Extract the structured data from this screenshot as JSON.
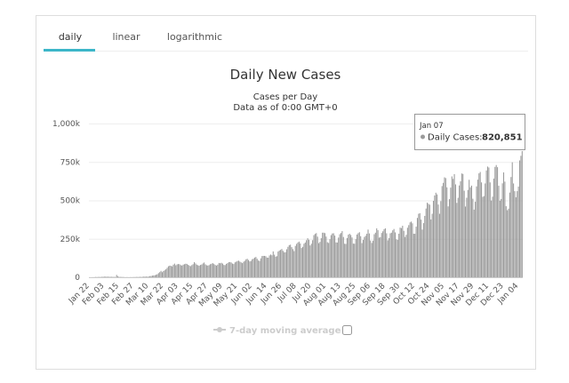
{
  "tabs": [
    "daily",
    "linear",
    "logarithmic"
  ],
  "chart_data": {
    "type": "bar",
    "title": "Daily New Cases",
    "subtitle": [
      "Cases per Day",
      "Data as of 0:00 GMT+0"
    ],
    "categories": [
      "Jan 22",
      null,
      null,
      null,
      null,
      null,
      null,
      null,
      null,
      null,
      null,
      null,
      "Feb 03",
      null,
      null,
      null,
      null,
      null,
      null,
      null,
      null,
      null,
      null,
      null,
      "Feb 15",
      null,
      null,
      null,
      null,
      null,
      null,
      null,
      null,
      null,
      null,
      null,
      "Feb 27",
      null,
      null,
      null,
      null,
      null,
      null,
      null,
      null,
      null,
      null,
      null,
      "Mar 10",
      null,
      null,
      null,
      null,
      null,
      null,
      null,
      null,
      null,
      null,
      null,
      "Mar 22",
      null,
      null,
      null,
      null,
      null,
      null,
      null,
      null,
      null,
      null,
      null,
      "Apr 03",
      null,
      null,
      null,
      null,
      null,
      null,
      null,
      null,
      null,
      null,
      null,
      "Apr 15",
      null,
      null,
      null,
      null,
      null,
      null,
      null,
      null,
      null,
      null,
      null,
      "Apr 27",
      null,
      null,
      null,
      null,
      null,
      null,
      null,
      null,
      null,
      null,
      null,
      "May 09",
      null,
      null,
      null,
      null,
      null,
      null,
      null,
      null,
      null,
      null,
      null,
      "May 21",
      null,
      null,
      null,
      null,
      null,
      null,
      null,
      null,
      null,
      null,
      null,
      "Jun 02",
      null,
      null,
      null,
      null,
      null,
      null,
      null,
      null,
      null,
      null,
      null,
      "Jun 14",
      null,
      null,
      null,
      null,
      null,
      null,
      null,
      null,
      null,
      null,
      null,
      "Jun 26",
      null,
      null,
      null,
      null,
      null,
      null,
      null,
      null,
      null,
      null,
      null,
      "Jul 08",
      null,
      null,
      null,
      null,
      null,
      null,
      null,
      null,
      null,
      null,
      null,
      "Jul 20",
      null,
      null,
      null,
      null,
      null,
      null,
      null,
      null,
      null,
      null,
      null,
      "Aug 01",
      null,
      null,
      null,
      null,
      null,
      null,
      null,
      null,
      null,
      null,
      null,
      "Aug 13",
      null,
      null,
      null,
      null,
      null,
      null,
      null,
      null,
      null,
      null,
      null,
      "Aug 25",
      null,
      null,
      null,
      null,
      null,
      null,
      null,
      null,
      null,
      null,
      null,
      "Sep 06",
      null,
      null,
      null,
      null,
      null,
      null,
      null,
      null,
      null,
      null,
      null,
      "Sep 18",
      null,
      null,
      null,
      null,
      null,
      null,
      null,
      null,
      null,
      null,
      null,
      "Sep 30",
      null,
      null,
      null,
      null,
      null,
      null,
      null,
      null,
      null,
      null,
      null,
      "Oct 12",
      null,
      null,
      null,
      null,
      null,
      null,
      null,
      null,
      null,
      null,
      null,
      "Oct 24",
      null,
      null,
      null,
      null,
      null,
      null,
      null,
      null,
      null,
      null,
      null,
      "Nov 05",
      null,
      null,
      null,
      null,
      null,
      null,
      null,
      null,
      null,
      null,
      null,
      "Nov 17",
      null,
      null,
      null,
      null,
      null,
      null,
      null,
      null,
      null,
      null,
      null,
      "Nov 29",
      null,
      null,
      null,
      null,
      null,
      null,
      null,
      null,
      null,
      null,
      null,
      "Dec 11",
      null,
      null,
      null,
      null,
      null,
      null,
      null,
      null,
      null,
      null,
      null,
      "Dec 23",
      null,
      null,
      null,
      null,
      null,
      null,
      null,
      null,
      null,
      null,
      null,
      "Jan 04",
      null,
      null,
      null
    ],
    "series": [
      {
        "name": "Daily Cases",
        "color": "#9a9a9a",
        "values": [
          600,
          100,
          300,
          700,
          800,
          1800,
          1500,
          1800,
          2100,
          2000,
          2600,
          3200,
          3900,
          3700,
          3700,
          3200,
          3400,
          2700,
          3000,
          2500,
          2100,
          2000,
          15100,
          6400,
          2700,
          2100,
          2000,
          1900,
          1100,
          600,
          1000,
          800,
          600,
          900,
          900,
          1100,
          1200,
          1600,
          2000,
          1900,
          2100,
          2500,
          2300,
          2800,
          4000,
          4000,
          4100,
          3900,
          4500,
          7400,
          8100,
          10800,
          11500,
          13000,
          16400,
          19500,
          27000,
          33500,
          41700,
          33100,
          40900,
          45500,
          52100,
          61300,
          71600,
          75300,
          74400,
          71000,
          81800,
          88800,
          78000,
          84000,
          86000,
          85000,
          79000,
          76000,
          82000,
          85000,
          88000,
          87000,
          81000,
          76000,
          72000,
          79000,
          85000,
          98000,
          90000,
          82000,
          78000,
          75000,
          80000,
          83000,
          90000,
          96000,
          84000,
          78000,
          76000,
          79000,
          85000,
          88000,
          92000,
          86000,
          80000,
          76000,
          82000,
          93000,
          91000,
          94000,
          89000,
          80000,
          79000,
          87000,
          92000,
          98000,
          99000,
          96000,
          89000,
          86000,
          97000,
          101000,
          106000,
          108000,
          102000,
          97000,
          92000,
          101000,
          107000,
          117000,
          120000,
          112000,
          103000,
          106000,
          117000,
          121000,
          128000,
          132000,
          120000,
          109000,
          106000,
          123000,
          138000,
          139000,
          139000,
          137000,
          128000,
          127000,
          142000,
          148000,
          143000,
          168000,
          147000,
          134000,
          137000,
          167000,
          174000,
          178000,
          184000,
          172000,
          162000,
          163000,
          182000,
          198000,
          209000,
          212000,
          196000,
          183000,
          170000,
          204000,
          217000,
          226000,
          232000,
          220000,
          190000,
          198000,
          218000,
          226000,
          241000,
          254000,
          244000,
          207000,
          218000,
          241000,
          274000,
          282000,
          287000,
          264000,
          222000,
          230000,
          254000,
          290000,
          290000,
          287000,
          265000,
          228000,
          223000,
          248000,
          274000,
          285000,
          286000,
          271000,
          227000,
          226000,
          258000,
          280000,
          288000,
          300000,
          262000,
          218000,
          217000,
          255000,
          277000,
          283000,
          275000,
          259000,
          219000,
          218000,
          248000,
          278000,
          287000,
          293000,
          267000,
          222000,
          243000,
          262000,
          270000,
          283000,
          310000,
          285000,
          239000,
          223000,
          238000,
          280000,
          290000,
          318000,
          306000,
          258000,
          261000,
          288000,
          299000,
          313000,
          318000,
          286000,
          240000,
          255000,
          286000,
          290000,
          305000,
          314000,
          292000,
          247000,
          243000,
          283000,
          323000,
          320000,
          335000,
          302000,
          262000,
          276000,
          322000,
          339000,
          357000,
          362000,
          351000,
          283000,
          283000,
          329000,
          386000,
          413000,
          417000,
          375000,
          310000,
          352000,
          399000,
          447000,
          485000,
          478000,
          472000,
          376000,
          413000,
          497000,
          532000,
          550000,
          539000,
          473000,
          413000,
          495000,
          593000,
          614000,
          650000,
          645000,
          585000,
          461000,
          508000,
          583000,
          656000,
          640000,
          671000,
          604000,
          484000,
          517000,
          597000,
          624000,
          675000,
          672000,
          563000,
          460000,
          517000,
          568000,
          634000,
          585000,
          596000,
          511000,
          440000,
          491000,
          591000,
          635000,
          676000,
          685000,
          617000,
          523000,
          528000,
          610000,
          695000,
          720000,
          714000,
          617000,
          499000,
          524000,
          642000,
          718000,
          730000,
          716000,
          595000,
          498000,
          509000,
          611000,
          682000,
          622000,
          462000,
          436000,
          446000,
          551000,
          652000,
          748000,
          610000,
          560000,
          520000,
          560000,
          590000,
          760000,
          790000,
          820851
        ]
      }
    ],
    "ylim": [
      0,
      1000000
    ],
    "yticks": [
      0,
      {
        "value": 250000,
        "label": "250k"
      },
      {
        "value": 500000,
        "label": "500k"
      },
      {
        "value": 750000,
        "label": "750k"
      },
      {
        "value": 1000000,
        "label": "1,000k"
      }
    ],
    "grid": true,
    "legend_items": [
      {
        "name": "7-day moving average",
        "hidden": true
      }
    ],
    "tooltip": {
      "title": "Jan 07",
      "label": "Daily Cases:",
      "value_label": "820,851"
    }
  }
}
